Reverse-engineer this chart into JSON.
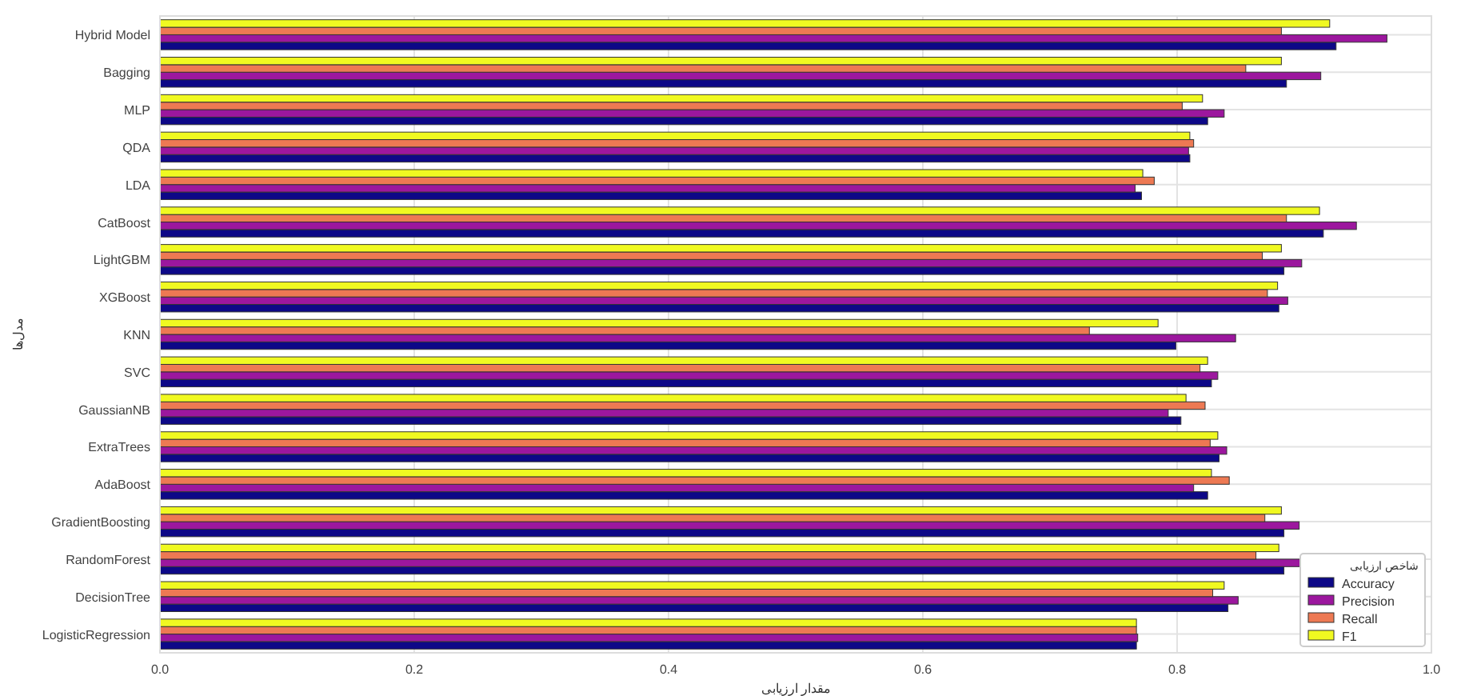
{
  "chart_data": {
    "type": "bar",
    "orientation": "horizontal",
    "xlabel": "مقدار ارزیابی",
    "ylabel": "مدل‌ها",
    "legend_title": "شاخص ارزیابی",
    "categories": [
      "Hybrid Model",
      "Bagging",
      "MLP",
      "QDA",
      "LDA",
      "CatBoost",
      "LightGBM",
      "XGBoost",
      "KNN",
      "SVC",
      "GaussianNB",
      "ExtraTrees",
      "AdaBoost",
      "GradientBoosting",
      "RandomForest",
      "DecisionTree",
      "LogisticRegression"
    ],
    "series": [
      {
        "name": "Accuracy",
        "color": "#0d0887",
        "values": [
          0.925,
          0.886,
          0.824,
          0.81,
          0.772,
          0.915,
          0.884,
          0.88,
          0.799,
          0.827,
          0.803,
          0.833,
          0.824,
          0.884,
          0.884,
          0.84,
          0.768
        ]
      },
      {
        "name": "Precision",
        "color": "#9c179e",
        "values": [
          0.965,
          0.913,
          0.837,
          0.809,
          0.767,
          0.941,
          0.898,
          0.887,
          0.846,
          0.832,
          0.793,
          0.839,
          0.813,
          0.896,
          0.899,
          0.848,
          0.769
        ]
      },
      {
        "name": "Recall",
        "color": "#ed7953",
        "values": [
          0.882,
          0.854,
          0.804,
          0.813,
          0.782,
          0.886,
          0.867,
          0.871,
          0.731,
          0.818,
          0.822,
          0.826,
          0.841,
          0.869,
          0.862,
          0.828,
          0.768
        ]
      },
      {
        "name": "F1",
        "color": "#f0f921",
        "values": [
          0.92,
          0.882,
          0.82,
          0.81,
          0.773,
          0.912,
          0.882,
          0.879,
          0.785,
          0.824,
          0.807,
          0.832,
          0.827,
          0.882,
          0.88,
          0.837,
          0.768
        ]
      }
    ],
    "xlim": [
      0,
      1.0
    ],
    "xticks": [
      {
        "value": 0,
        "label": "0.0"
      },
      0.2,
      0.4,
      0.6,
      0.8,
      {
        "value": 1,
        "label": "1.0"
      }
    ],
    "grid": true,
    "legend": "bottom right"
  }
}
